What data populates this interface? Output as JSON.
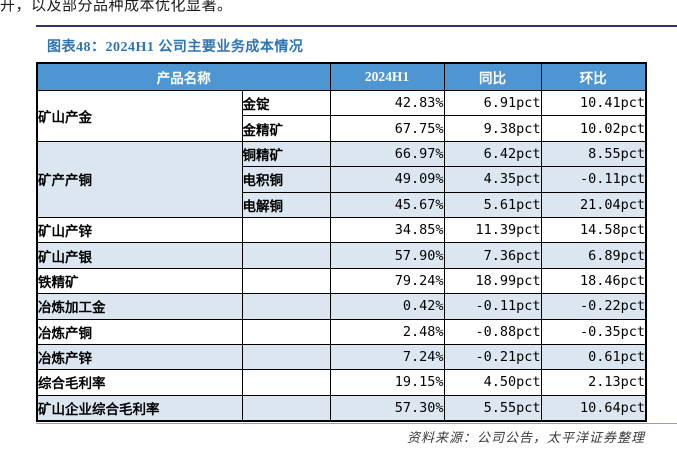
{
  "page": {
    "top_text": "开，以及部分品种成本优化显著。",
    "figure_title": "图表48：2024H1 公司主要业务成本情况",
    "source_note": "资料来源：公司公告，太平洋证券整理"
  },
  "colors": {
    "header_bg": "#4e96d1",
    "shaded_row_bg": "#dce6f1",
    "title_blue": "#2e74b5",
    "top_rule": "#35356b",
    "bottom_rule": "#9a9ac8"
  },
  "table": {
    "headers": [
      "产品名称",
      "2024H1",
      "同比",
      "环比"
    ],
    "groups": [
      {
        "name": "矿山产金",
        "shaded": false,
        "rows": [
          {
            "sub": "金锭",
            "h1": "42.83%",
            "yoy": "6.91pct",
            "qoq": "10.41pct"
          },
          {
            "sub": "金精矿",
            "h1": "67.75%",
            "yoy": "9.38pct",
            "qoq": "10.02pct"
          }
        ]
      },
      {
        "name": "矿产产铜",
        "shaded": true,
        "rows": [
          {
            "sub": "铜精矿",
            "h1": "66.97%",
            "yoy": "6.42pct",
            "qoq": "8.55pct"
          },
          {
            "sub": "电积铜",
            "h1": "49.09%",
            "yoy": "4.35pct",
            "qoq": "-0.11pct"
          },
          {
            "sub": "电解铜",
            "h1": "45.67%",
            "yoy": "5.61pct",
            "qoq": "21.04pct"
          }
        ]
      },
      {
        "name": "矿山产锌",
        "shaded": false,
        "rows": [
          {
            "sub": "",
            "h1": "34.85%",
            "yoy": "11.39pct",
            "qoq": "14.58pct"
          }
        ]
      },
      {
        "name": "矿山产银",
        "shaded": true,
        "rows": [
          {
            "sub": "",
            "h1": "57.90%",
            "yoy": "7.36pct",
            "qoq": "6.89pct"
          }
        ]
      },
      {
        "name": "铁精矿",
        "shaded": false,
        "rows": [
          {
            "sub": "",
            "h1": "79.24%",
            "yoy": "18.99pct",
            "qoq": "18.46pct"
          }
        ]
      },
      {
        "name": "冶炼加工金",
        "shaded": true,
        "rows": [
          {
            "sub": "",
            "h1": "0.42%",
            "yoy": "-0.11pct",
            "qoq": "-0.22pct"
          }
        ]
      },
      {
        "name": "冶炼产铜",
        "shaded": false,
        "rows": [
          {
            "sub": "",
            "h1": "2.48%",
            "yoy": "-0.88pct",
            "qoq": "-0.35pct"
          }
        ]
      },
      {
        "name": "冶炼产锌",
        "shaded": true,
        "rows": [
          {
            "sub": "",
            "h1": "7.24%",
            "yoy": "-0.21pct",
            "qoq": "0.61pct"
          }
        ]
      },
      {
        "name": "综合毛利率",
        "shaded": false,
        "rows": [
          {
            "sub": "",
            "h1": "19.15%",
            "yoy": "4.50pct",
            "qoq": "2.13pct"
          }
        ]
      },
      {
        "name": "矿山企业综合毛利率",
        "shaded": true,
        "rows": [
          {
            "sub": "",
            "h1": "57.30%",
            "yoy": "5.55pct",
            "qoq": "10.64pct"
          }
        ]
      }
    ]
  }
}
